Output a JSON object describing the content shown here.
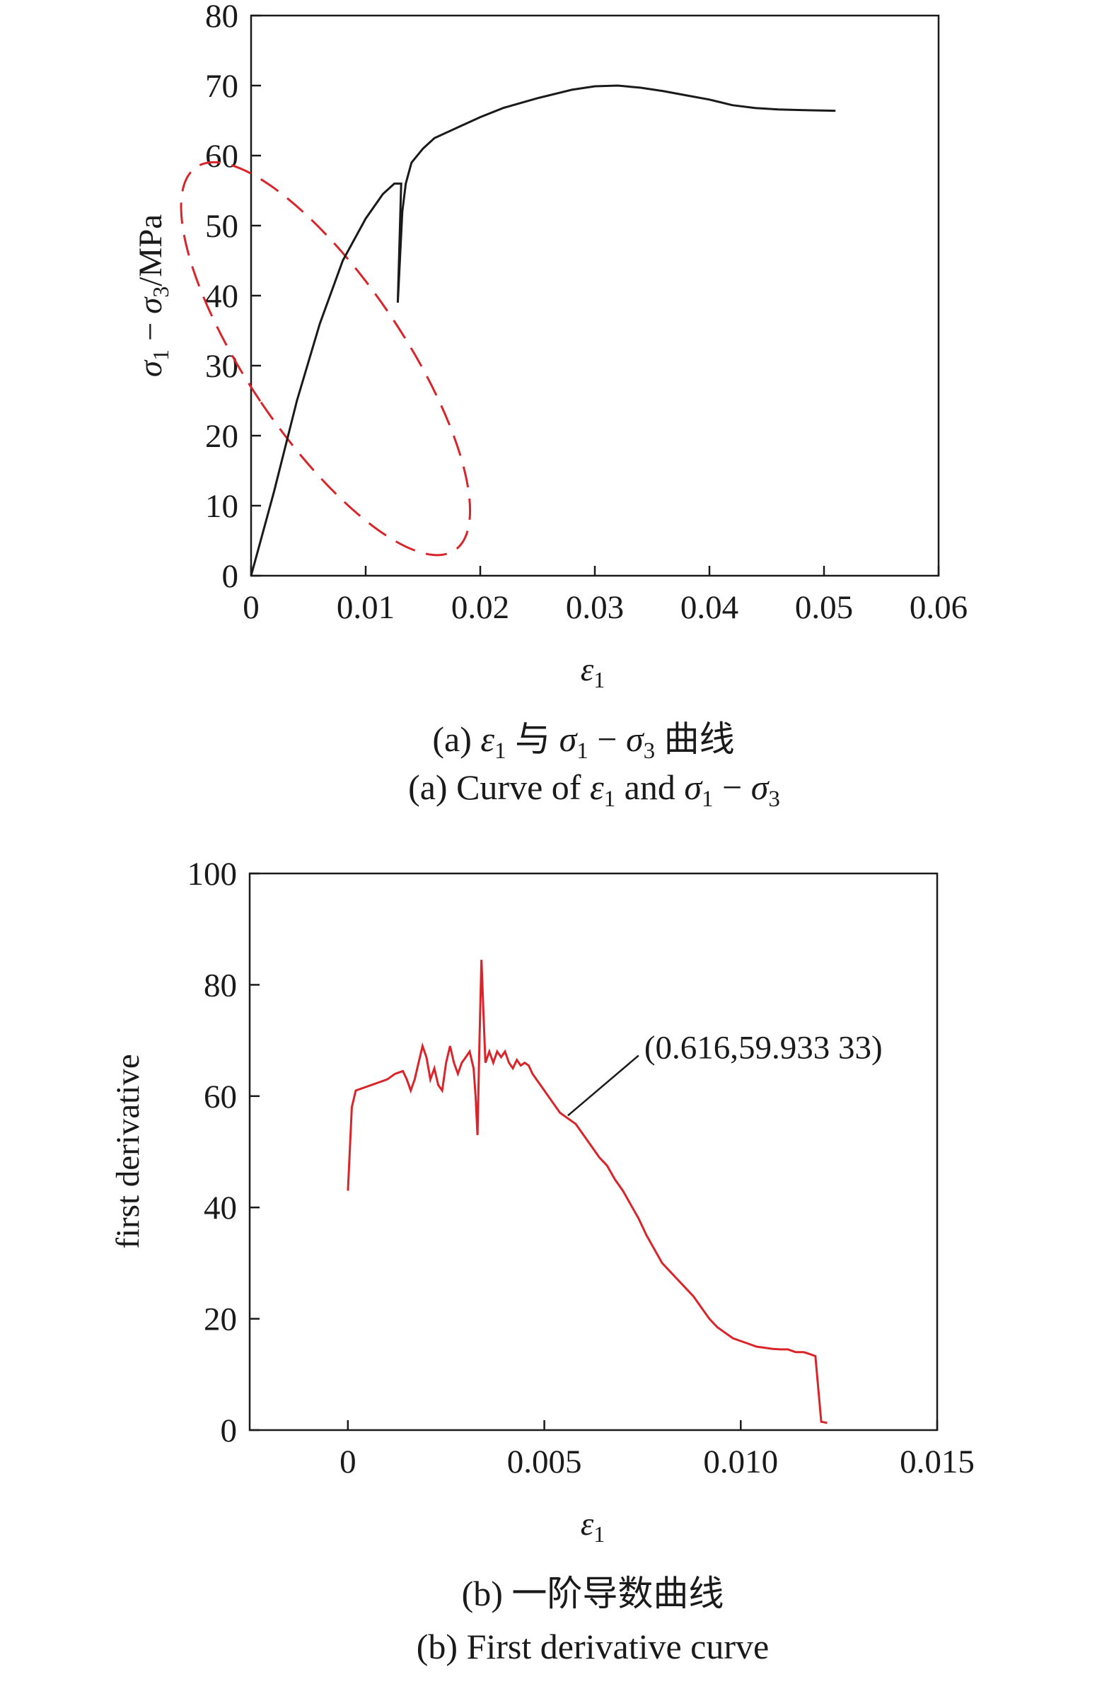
{
  "chart_data": [
    {
      "type": "line",
      "ylabel": {
        "sym1": "σ",
        "sub1": "1",
        "minus": " − ",
        "sym3": "σ",
        "sub3": "3",
        "unit": "/MPa"
      },
      "xlabel": {
        "sym": "ε",
        "sub": "1"
      },
      "xlim": [
        0,
        0.06
      ],
      "ylim": [
        0,
        80
      ],
      "x_ticks": [
        "0",
        "0.01",
        "0.02",
        "0.03",
        "0.04",
        "0.05",
        "0.06"
      ],
      "y_ticks": [
        "0",
        "10",
        "20",
        "30",
        "40",
        "50",
        "60",
        "70",
        "80"
      ],
      "grid": false,
      "series": [
        {
          "color": "#1a1a1a",
          "points": [
            [
              0,
              0
            ],
            [
              0.002,
              12
            ],
            [
              0.004,
              25
            ],
            [
              0.006,
              36
            ],
            [
              0.008,
              45
            ],
            [
              0.01,
              51
            ],
            [
              0.0115,
              54.5
            ],
            [
              0.0125,
              56
            ],
            [
              0.0131,
              56
            ],
            [
              0.0128,
              39
            ],
            [
              0.0132,
              52
            ],
            [
              0.0135,
              56
            ],
            [
              0.014,
              59
            ],
            [
              0.015,
              61
            ],
            [
              0.016,
              62.5
            ],
            [
              0.018,
              64
            ],
            [
              0.02,
              65.5
            ],
            [
              0.022,
              66.8
            ],
            [
              0.025,
              68.2
            ],
            [
              0.028,
              69.4
            ],
            [
              0.03,
              69.9
            ],
            [
              0.032,
              70
            ],
            [
              0.034,
              69.7
            ],
            [
              0.036,
              69.2
            ],
            [
              0.038,
              68.6
            ],
            [
              0.04,
              68
            ],
            [
              0.042,
              67.2
            ],
            [
              0.044,
              66.8
            ],
            [
              0.046,
              66.6
            ],
            [
              0.048,
              66.5
            ],
            [
              0.051,
              66.4
            ]
          ]
        }
      ],
      "annotation": {
        "shape": "dashed-ellipse",
        "color": "#d9242a",
        "center": [
          0.0065,
          31
        ],
        "rx": 0.0068,
        "ry": 33,
        "rotate_deg": -34
      }
    },
    {
      "type": "line",
      "ylabel": "first derivative",
      "xlabel": {
        "sym": "ε",
        "sub": "1"
      },
      "xlim": [
        -0.0025,
        0.015
      ],
      "ylim": [
        0,
        100
      ],
      "x_ticks": [
        "0",
        "0.005",
        "0.010",
        "0.015"
      ],
      "x_tick_values": [
        0,
        0.005,
        0.01,
        0.015
      ],
      "y_ticks": [
        "0",
        "20",
        "40",
        "60",
        "80",
        "100"
      ],
      "grid": false,
      "series": [
        {
          "color": "#d9242a",
          "points": [
            [
              0,
              43
            ],
            [
              0.0001,
              58
            ],
            [
              0.0002,
              61
            ],
            [
              0.0004,
              61.5
            ],
            [
              0.0006,
              62
            ],
            [
              0.0008,
              62.5
            ],
            [
              0.001,
              63
            ],
            [
              0.0012,
              64
            ],
            [
              0.0014,
              64.5
            ],
            [
              0.0015,
              63
            ],
            [
              0.0016,
              61
            ],
            [
              0.0017,
              63
            ],
            [
              0.0018,
              66
            ],
            [
              0.0019,
              69
            ],
            [
              0.002,
              67
            ],
            [
              0.0021,
              63
            ],
            [
              0.0022,
              65
            ],
            [
              0.0023,
              62
            ],
            [
              0.0024,
              61
            ],
            [
              0.0025,
              66
            ],
            [
              0.0026,
              69
            ],
            [
              0.0027,
              66
            ],
            [
              0.0028,
              64
            ],
            [
              0.0029,
              66
            ],
            [
              0.003,
              67
            ],
            [
              0.0031,
              68
            ],
            [
              0.0032,
              65
            ],
            [
              0.00325,
              60
            ],
            [
              0.0033,
              53
            ],
            [
              0.00335,
              70
            ],
            [
              0.0034,
              84.5
            ],
            [
              0.00345,
              75
            ],
            [
              0.0035,
              66
            ],
            [
              0.0036,
              68
            ],
            [
              0.0037,
              66
            ],
            [
              0.0038,
              68
            ],
            [
              0.0039,
              67
            ],
            [
              0.004,
              68
            ],
            [
              0.0041,
              66
            ],
            [
              0.0042,
              65
            ],
            [
              0.0043,
              66.5
            ],
            [
              0.0044,
              65.5
            ],
            [
              0.0045,
              66
            ],
            [
              0.0046,
              65.5
            ],
            [
              0.0047,
              64
            ],
            [
              0.0048,
              63
            ],
            [
              0.005,
              61
            ],
            [
              0.0052,
              59
            ],
            [
              0.0054,
              57
            ],
            [
              0.0056,
              56
            ],
            [
              0.0058,
              55
            ],
            [
              0.006,
              53
            ],
            [
              0.0062,
              51
            ],
            [
              0.0064,
              49
            ],
            [
              0.0066,
              47.5
            ],
            [
              0.0068,
              45
            ],
            [
              0.007,
              43
            ],
            [
              0.0072,
              40.5
            ],
            [
              0.0074,
              38
            ],
            [
              0.0076,
              35
            ],
            [
              0.0078,
              32.5
            ],
            [
              0.008,
              30
            ],
            [
              0.0082,
              28.5
            ],
            [
              0.0084,
              27
            ],
            [
              0.0086,
              25.5
            ],
            [
              0.0088,
              24
            ],
            [
              0.009,
              22
            ],
            [
              0.0092,
              20
            ],
            [
              0.0094,
              18.5
            ],
            [
              0.0096,
              17.5
            ],
            [
              0.0098,
              16.5
            ],
            [
              0.01,
              16
            ],
            [
              0.0102,
              15.5
            ],
            [
              0.0104,
              15
            ],
            [
              0.0106,
              14.8
            ],
            [
              0.0108,
              14.6
            ],
            [
              0.011,
              14.5
            ],
            [
              0.0112,
              14.5
            ],
            [
              0.0114,
              14
            ],
            [
              0.0116,
              14
            ],
            [
              0.0117,
              13.8
            ],
            [
              0.0119,
              13.3
            ],
            [
              0.01205,
              1.5
            ],
            [
              0.0122,
              1.3
            ]
          ]
        }
      ],
      "annotation": {
        "text": "(0.616,59.933 33)",
        "point": [
          0.0056,
          56.5
        ]
      }
    }
  ],
  "captions": {
    "a_cn": {
      "prefix": "(a) ",
      "e": "ε",
      "e_sub": "1",
      "yu": " 与 ",
      "s1": "σ",
      "s1_sub": "1",
      "minus": " − ",
      "s3": "σ",
      "s3_sub": "3",
      "tail": " 曲线"
    },
    "a_en": {
      "prefix": "(a)  Curve of ",
      "e": "ε",
      "e_sub": "1",
      "and": "  and  ",
      "s1": "σ",
      "s1_sub": "1",
      "minus": " − ",
      "s3": "σ",
      "s3_sub": "3"
    },
    "b_cn": "(b) 一阶导数曲线",
    "b_en": "(b) First derivative curve"
  }
}
